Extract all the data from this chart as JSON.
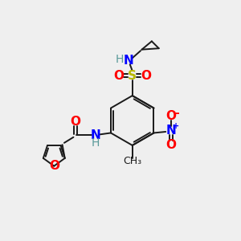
{
  "background_color": "#efefef",
  "bond_color": "#1a1a1a",
  "atom_colors": {
    "O": "#ff0000",
    "N": "#0000ff",
    "S": "#b8b800",
    "H": "#5a9a9a",
    "C": "#1a1a1a"
  },
  "figsize": [
    3.0,
    3.0
  ],
  "dpi": 100
}
